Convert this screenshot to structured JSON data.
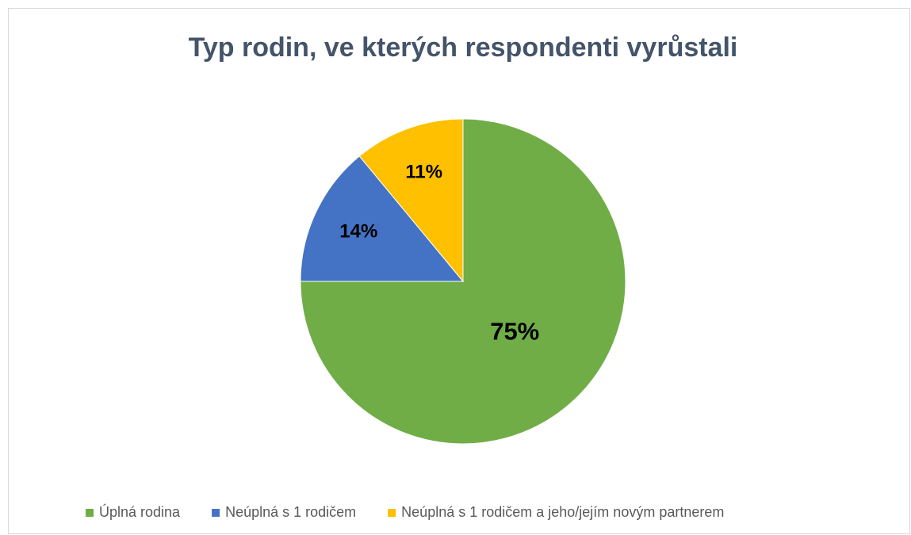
{
  "chart_data": {
    "type": "pie",
    "title": "Typ rodin, ve kterých respondenti vyrůstali",
    "categories": [
      "Úplná rodina",
      "Neúplná s 1 rodičem",
      "Neúplná s 1 rodičem a jeho/jejím novým partnerem"
    ],
    "values": [
      75,
      14,
      11
    ],
    "value_labels": [
      "75%",
      "14%",
      "11%"
    ],
    "colors": [
      "#70ad47",
      "#4472c4",
      "#ffc000"
    ],
    "legend": "bottom"
  }
}
